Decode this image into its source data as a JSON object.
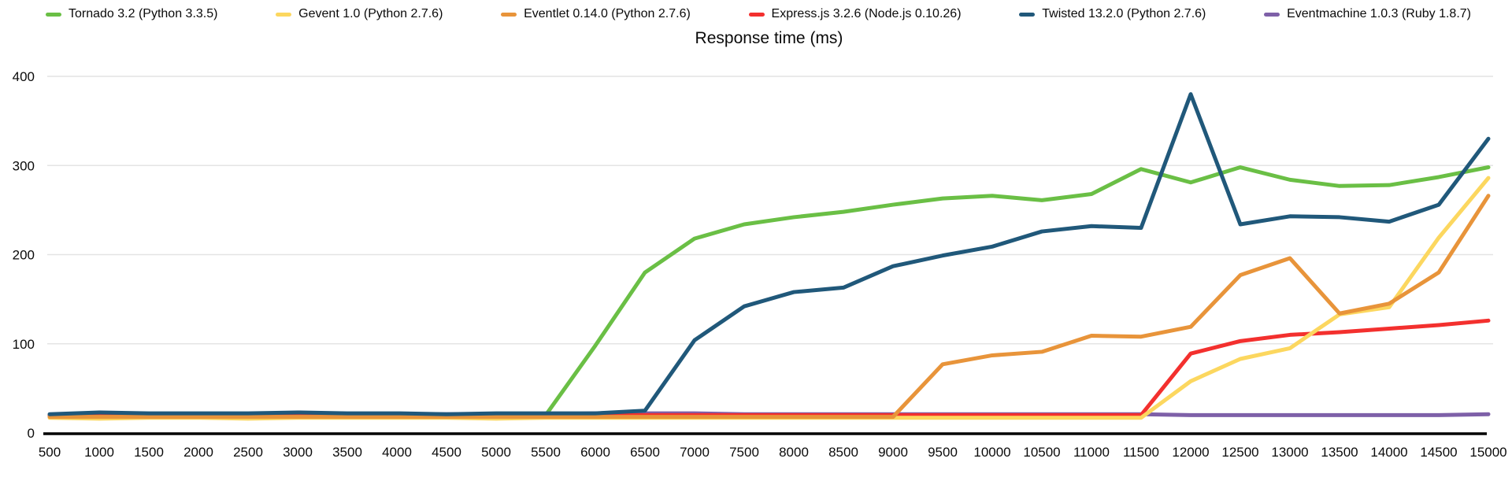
{
  "title": "Response time (ms)",
  "colors": {
    "background": "#ffffff",
    "gridline": "#e4e4e4",
    "axis": "#000000",
    "text": "#0a0a0a"
  },
  "chart_data": {
    "type": "line",
    "title": "Response time (ms)",
    "xlabel": "",
    "ylabel": "",
    "xlim": [
      500,
      15000
    ],
    "ylim": [
      0,
      400
    ],
    "yticks": [
      0,
      100,
      200,
      300,
      400
    ],
    "grid": "horizontal",
    "legend_position": "top",
    "x": [
      500,
      1000,
      1500,
      2000,
      2500,
      3000,
      3500,
      4000,
      4500,
      5000,
      5500,
      6000,
      6500,
      7000,
      7500,
      8000,
      8500,
      9000,
      9500,
      10000,
      10500,
      11000,
      11500,
      12000,
      12500,
      13000,
      13500,
      14000,
      14500,
      15000
    ],
    "series": [
      {
        "name": "Tornado 3.2 (Python 3.3.5)",
        "color": "#6abf45",
        "values": [
          19,
          19,
          19,
          19,
          19,
          19,
          19,
          19,
          19,
          19,
          20,
          98,
          180,
          218,
          234,
          242,
          248,
          256,
          263,
          266,
          261,
          268,
          296,
          281,
          298,
          284,
          277,
          278,
          287,
          298
        ]
      },
      {
        "name": "Gevent 1.0 (Python 2.7.6)",
        "color": "#fcd75f",
        "values": [
          17,
          16,
          17,
          17,
          16,
          17,
          17,
          17,
          17,
          16,
          17,
          17,
          17,
          17,
          17,
          17,
          17,
          17,
          17,
          17,
          17,
          17,
          17,
          58,
          83,
          95,
          133,
          141,
          219,
          286
        ]
      },
      {
        "name": "Eventlet 0.14.0 (Python 2.7.6)",
        "color": "#e8943a",
        "values": [
          18,
          18,
          18,
          18,
          18,
          18,
          18,
          18,
          18,
          18,
          18,
          18,
          18,
          18,
          18,
          18,
          18,
          18,
          77,
          87,
          91,
          109,
          108,
          119,
          177,
          196,
          134,
          145,
          180,
          266
        ]
      },
      {
        "name": "Express.js 3.2.6 (Node.js 0.10.26)",
        "color": "#f3302e",
        "values": [
          20,
          20,
          20,
          20,
          20,
          20,
          20,
          20,
          20,
          20,
          20,
          20,
          20,
          20,
          20,
          20,
          20,
          20,
          20,
          20,
          20,
          20,
          20,
          89,
          103,
          110,
          113,
          117,
          121,
          126
        ]
      },
      {
        "name": "Twisted 13.2.0 (Python 2.7.6)",
        "color": "#20587a",
        "values": [
          21,
          23,
          22,
          22,
          22,
          23,
          22,
          22,
          21,
          22,
          22,
          22,
          25,
          104,
          142,
          158,
          163,
          187,
          199,
          209,
          226,
          232,
          230,
          380,
          234,
          243,
          242,
          237,
          256,
          330
        ]
      },
      {
        "name": "Eventmachine 1.0.3 (Ruby 1.8.7)",
        "color": "#7e60a8",
        "values": [
          20,
          21,
          21,
          21,
          21,
          21,
          21,
          21,
          21,
          21,
          21,
          22,
          22,
          22,
          21,
          21,
          21,
          21,
          21,
          21,
          21,
          21,
          21,
          20,
          20,
          20,
          20,
          20,
          20,
          21
        ]
      }
    ]
  }
}
